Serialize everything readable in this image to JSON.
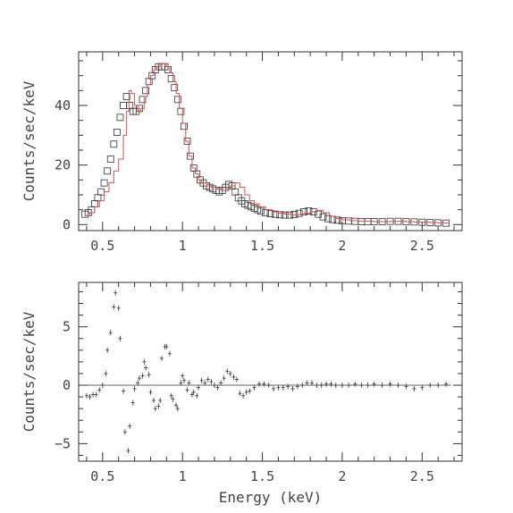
{
  "chart_data": [
    {
      "type": "scatter",
      "panel": "top",
      "xlabel": "",
      "ylabel": "Counts/sec/keV",
      "xlim": [
        0.35,
        2.75
      ],
      "ylim": [
        -2,
        58
      ],
      "xticks": [
        0.5,
        1,
        1.5,
        2,
        2.5
      ],
      "xtick_labels": [
        "0.5",
        "1",
        "1.5",
        "2",
        "2.5"
      ],
      "yticks": [
        0,
        20,
        40
      ],
      "ytick_labels": [
        "0",
        "20",
        "40"
      ],
      "series": [
        {
          "kind": "data-squares",
          "x": [
            0.39,
            0.41,
            0.43,
            0.45,
            0.47,
            0.49,
            0.51,
            0.53,
            0.55,
            0.57,
            0.59,
            0.61,
            0.63,
            0.65,
            0.67,
            0.69,
            0.71,
            0.73,
            0.75,
            0.77,
            0.79,
            0.81,
            0.83,
            0.85,
            0.87,
            0.89,
            0.91,
            0.93,
            0.95,
            0.97,
            0.99,
            1.01,
            1.03,
            1.05,
            1.07,
            1.09,
            1.11,
            1.13,
            1.15,
            1.17,
            1.19,
            1.21,
            1.23,
            1.25,
            1.27,
            1.29,
            1.31,
            1.33,
            1.35,
            1.37,
            1.39,
            1.41,
            1.43,
            1.45,
            1.47,
            1.49,
            1.52,
            1.55,
            1.58,
            1.61,
            1.64,
            1.67,
            1.7,
            1.73,
            1.76,
            1.79,
            1.82,
            1.85,
            1.88,
            1.91,
            1.94,
            1.97,
            2.0,
            2.04,
            2.08,
            2.12,
            2.16,
            2.2,
            2.25,
            2.3,
            2.35,
            2.4,
            2.45,
            2.5,
            2.55,
            2.6,
            2.65
          ],
          "y": [
            3.5,
            4,
            5,
            7,
            9,
            11,
            14,
            18,
            22,
            27,
            31,
            36,
            40,
            43,
            40,
            38,
            38,
            39,
            42,
            45,
            48,
            50,
            52,
            53,
            53,
            53,
            52,
            49,
            46,
            42,
            38,
            33,
            28,
            23,
            19,
            17,
            15,
            14,
            13,
            12.5,
            12,
            11.5,
            11,
            11.5,
            12.5,
            13.5,
            13,
            11,
            9,
            8,
            7,
            6.5,
            6,
            5.5,
            5,
            4.5,
            4,
            3.7,
            3.5,
            3.3,
            3.2,
            3.2,
            3.4,
            3.8,
            4.3,
            4.6,
            4.3,
            3.5,
            2.6,
            2,
            1.7,
            1.5,
            1.3,
            1.2,
            1.1,
            1,
            1,
            1,
            1,
            1.1,
            1.1,
            1,
            0.9,
            0.8,
            0.7,
            0.6,
            0.5
          ],
          "color": "#333333"
        },
        {
          "kind": "model-step",
          "x": [
            0.39,
            0.42,
            0.45,
            0.48,
            0.51,
            0.54,
            0.57,
            0.6,
            0.63,
            0.65,
            0.665,
            0.68,
            0.7,
            0.72,
            0.74,
            0.76,
            0.78,
            0.8,
            0.82,
            0.84,
            0.86,
            0.88,
            0.9,
            0.92,
            0.94,
            0.96,
            0.98,
            1.0,
            1.02,
            1.04,
            1.06,
            1.08,
            1.1,
            1.12,
            1.15,
            1.18,
            1.21,
            1.24,
            1.27,
            1.3,
            1.33,
            1.36,
            1.39,
            1.42,
            1.45,
            1.48,
            1.52,
            1.56,
            1.6,
            1.64,
            1.68,
            1.72,
            1.76,
            1.8,
            1.84,
            1.88,
            1.92,
            1.96,
            2.0,
            2.05,
            2.1,
            2.15,
            2.2,
            2.25,
            2.3,
            2.35,
            2.4,
            2.45,
            2.5,
            2.55,
            2.6,
            2.65
          ],
          "y": [
            3,
            4,
            6,
            8,
            11,
            14,
            18,
            22,
            30,
            38,
            45,
            44,
            40,
            38,
            39,
            43,
            47,
            50,
            52,
            53,
            54,
            54,
            53,
            51,
            48,
            44,
            39,
            34,
            28,
            23,
            19,
            17,
            15,
            14,
            13,
            12.5,
            12,
            11.5,
            12,
            13,
            14,
            12.5,
            10,
            8,
            7,
            6,
            5,
            4.3,
            3.8,
            3.5,
            3.3,
            3.4,
            3.8,
            4.3,
            4.8,
            4,
            2.8,
            2,
            1.6,
            1.3,
            1.2,
            1.1,
            1,
            1,
            1.1,
            1.1,
            1,
            0.9,
            0.8,
            0.7,
            0.6,
            0.5
          ],
          "color": "#d9534f"
        }
      ]
    },
    {
      "type": "scatter",
      "panel": "bottom",
      "xlabel": "Energy (keV)",
      "ylabel": "Counts/sec/keV",
      "xlim": [
        0.35,
        2.75
      ],
      "ylim": [
        -6.5,
        8.8
      ],
      "xticks": [
        0.5,
        1,
        1.5,
        2,
        2.5
      ],
      "xtick_labels": [
        "0.5",
        "1",
        "1.5",
        "2",
        "2.5"
      ],
      "yticks": [
        -5,
        0,
        5
      ],
      "ytick_labels": [
        "−5",
        "0",
        "5"
      ],
      "zero_line": true,
      "series": [
        {
          "kind": "residual-crosses",
          "x": [
            0.4,
            0.42,
            0.44,
            0.46,
            0.48,
            0.5,
            0.52,
            0.53,
            0.55,
            0.57,
            0.58,
            0.6,
            0.61,
            0.63,
            0.64,
            0.66,
            0.67,
            0.69,
            0.7,
            0.72,
            0.73,
            0.75,
            0.76,
            0.77,
            0.79,
            0.8,
            0.82,
            0.83,
            0.85,
            0.86,
            0.87,
            0.89,
            0.9,
            0.92,
            0.93,
            0.94,
            0.96,
            0.97,
            0.99,
            1.0,
            1.01,
            1.03,
            1.04,
            1.06,
            1.07,
            1.09,
            1.1,
            1.12,
            1.14,
            1.16,
            1.18,
            1.2,
            1.22,
            1.24,
            1.26,
            1.28,
            1.3,
            1.32,
            1.34,
            1.36,
            1.38,
            1.4,
            1.42,
            1.45,
            1.48,
            1.51,
            1.54,
            1.57,
            1.6,
            1.63,
            1.66,
            1.69,
            1.72,
            1.75,
            1.78,
            1.81,
            1.84,
            1.87,
            1.9,
            1.93,
            1.96,
            2.0,
            2.04,
            2.08,
            2.12,
            2.16,
            2.2,
            2.25,
            2.3,
            2.35,
            2.4,
            2.45,
            2.5,
            2.55,
            2.6,
            2.65
          ],
          "y": [
            -0.9,
            -1.0,
            -0.8,
            -0.8,
            -0.4,
            0.0,
            1.0,
            3.0,
            4.5,
            6.7,
            7.9,
            6.6,
            4.0,
            -0.5,
            -4.0,
            -5.6,
            -3.5,
            -1.5,
            -0.3,
            0.2,
            0.6,
            0.8,
            2.0,
            1.5,
            0.9,
            -0.6,
            -1.3,
            -2.0,
            -1.8,
            -1.3,
            2.3,
            3.3,
            3.3,
            2.7,
            -0.9,
            -1.2,
            -1.7,
            -2.0,
            0.2,
            0.8,
            0.4,
            -0.4,
            0.2,
            -0.8,
            -0.6,
            -0.9,
            -0.2,
            0.4,
            0.2,
            0.5,
            0.3,
            0.0,
            -0.2,
            0.2,
            0.6,
            1.2,
            1.0,
            0.7,
            0.5,
            -0.7,
            -0.9,
            -0.6,
            -0.5,
            -0.2,
            0.1,
            0.1,
            0.0,
            -0.3,
            -0.2,
            -0.2,
            -0.1,
            -0.3,
            -0.1,
            0.0,
            0.2,
            0.2,
            0.0,
            0.0,
            0.1,
            0.1,
            0.0,
            0.0,
            0.0,
            0.1,
            0.0,
            0.0,
            0.1,
            0.0,
            0.1,
            0.0,
            -0.1,
            -0.3,
            -0.2,
            0.0,
            0.0,
            0.1
          ],
          "color": "#333333"
        }
      ]
    }
  ]
}
